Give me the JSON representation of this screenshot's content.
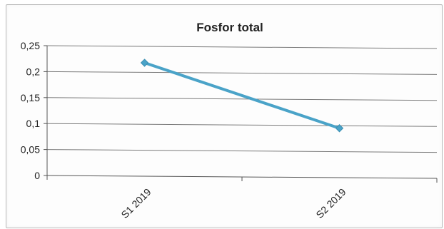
{
  "chart_data": {
    "type": "line",
    "title": "Fosfor total",
    "categories": [
      "S1 2019",
      "S2 2019"
    ],
    "series": [
      {
        "values": [
          0.217,
          0.091
        ],
        "color": "#4aa3c8",
        "marker": "diamond"
      }
    ],
    "ylim": [
      0,
      0.25
    ],
    "yticks": [
      "0",
      "0,05",
      "0,1",
      "0,15",
      "0,2",
      "0,25"
    ],
    "grid": true,
    "legend": "none",
    "xlabel": "",
    "ylabel": ""
  }
}
